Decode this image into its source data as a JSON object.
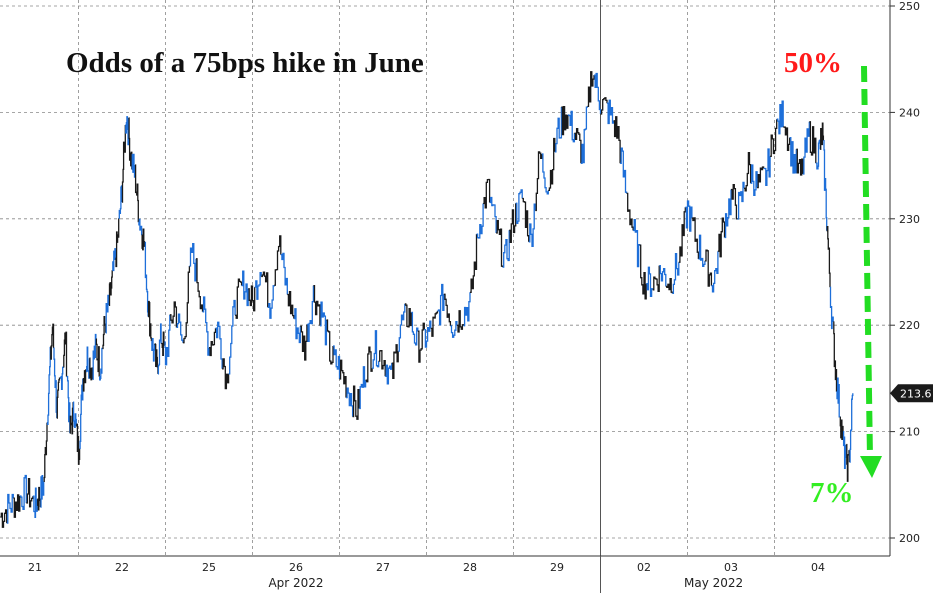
{
  "chart_data": {
    "type": "line",
    "title": "Odds of a 75bps hike in June",
    "xlabel": "",
    "ylabel": "",
    "ylim": [
      198,
      252
    ],
    "yticks": [
      200,
      210,
      220,
      230,
      240,
      250
    ],
    "grid": true,
    "x_ticks": [
      {
        "label": "21",
        "pos": 0.0
      },
      {
        "label": "22",
        "pos": 1.0
      },
      {
        "label": "25",
        "pos": 2.0
      },
      {
        "label": "26",
        "pos": 3.0
      },
      {
        "label": "27",
        "pos": 4.0
      },
      {
        "label": "28",
        "pos": 5.0
      },
      {
        "label": "29",
        "pos": 6.0
      },
      {
        "label": "02",
        "pos": 7.0
      },
      {
        "label": "03",
        "pos": 8.0
      },
      {
        "label": "04",
        "pos": 9.0
      }
    ],
    "day_separators": [
      0.5,
      1.5,
      2.5,
      3.5,
      4.5,
      5.5,
      6.5,
      7.5,
      8.5
    ],
    "month_labels": [
      {
        "label": "Apr 2022",
        "pos": 3.0
      },
      {
        "label": "May 2022",
        "pos": 7.8
      }
    ],
    "series": [
      {
        "color_primary": "#1a1a1a",
        "color_secondary": "#1e6fd9",
        "x": [
          -0.4,
          -0.3,
          -0.2,
          -0.1,
          0.0,
          0.05,
          0.1,
          0.15,
          0.2,
          0.25,
          0.3,
          0.35,
          0.4,
          0.45,
          0.5,
          0.55,
          0.6,
          0.65,
          0.7,
          0.75,
          0.8,
          0.85,
          0.9,
          0.95,
          1.0,
          1.05,
          1.1,
          1.15,
          1.2,
          1.25,
          1.3,
          1.35,
          1.4,
          1.45,
          1.5,
          1.6,
          1.7,
          1.8,
          1.9,
          2.0,
          2.1,
          2.2,
          2.3,
          2.4,
          2.5,
          2.6,
          2.7,
          2.8,
          2.9,
          3.0,
          3.1,
          3.2,
          3.3,
          3.4,
          3.5,
          3.6,
          3.7,
          3.8,
          3.9,
          4.0,
          4.1,
          4.2,
          4.3,
          4.4,
          4.5,
          4.6,
          4.7,
          4.8,
          4.9,
          5.0,
          5.1,
          5.2,
          5.3,
          5.4,
          5.5,
          5.6,
          5.7,
          5.8,
          5.9,
          6.0,
          6.1,
          6.2,
          6.3,
          6.4,
          6.5,
          6.6,
          6.7,
          6.8,
          6.9,
          7.0,
          7.1,
          7.2,
          7.3,
          7.4,
          7.5,
          7.6,
          7.7,
          7.8,
          7.9,
          8.0,
          8.1,
          8.2,
          8.3,
          8.4,
          8.5,
          8.6,
          8.7,
          8.8,
          8.9,
          9.0,
          9.05,
          9.1,
          9.15,
          9.2,
          9.25,
          9.3,
          9.35,
          9.4
        ],
        "y": [
          202,
          203,
          203.5,
          204.5,
          203,
          204,
          205,
          213,
          220,
          212,
          215,
          219,
          210,
          212,
          208,
          215,
          217,
          216,
          218,
          216,
          220,
          222,
          225,
          228,
          233,
          240,
          236,
          234,
          230,
          228,
          222,
          218,
          216,
          219,
          217,
          222,
          218,
          227,
          223,
          218,
          220,
          215,
          222,
          224,
          222,
          226,
          222,
          228,
          223,
          220,
          218,
          223,
          221,
          217,
          216,
          214,
          212,
          216,
          218,
          217,
          215,
          220,
          221,
          218,
          219,
          220,
          223,
          220,
          221,
          222,
          229,
          233,
          229,
          226,
          230,
          232,
          228,
          236,
          233,
          238,
          240,
          238,
          236,
          244,
          241,
          240,
          238,
          232,
          228,
          224,
          224,
          225,
          224,
          226,
          231,
          228,
          226,
          224,
          229,
          232,
          231,
          235,
          233,
          234,
          238,
          240,
          236,
          234,
          238,
          236,
          238,
          230,
          222,
          216,
          212,
          208,
          206.5,
          213.6
        ]
      }
    ],
    "annotations": [
      {
        "text": "50%",
        "color": "#ff1a1a"
      },
      {
        "text": "7%",
        "color": "#33ee22"
      }
    ],
    "last_value": "213.6",
    "last_value_num": 213.6,
    "arrow_color": "#22dd22",
    "axis_color": "#333333",
    "grid_color": "#888888"
  }
}
